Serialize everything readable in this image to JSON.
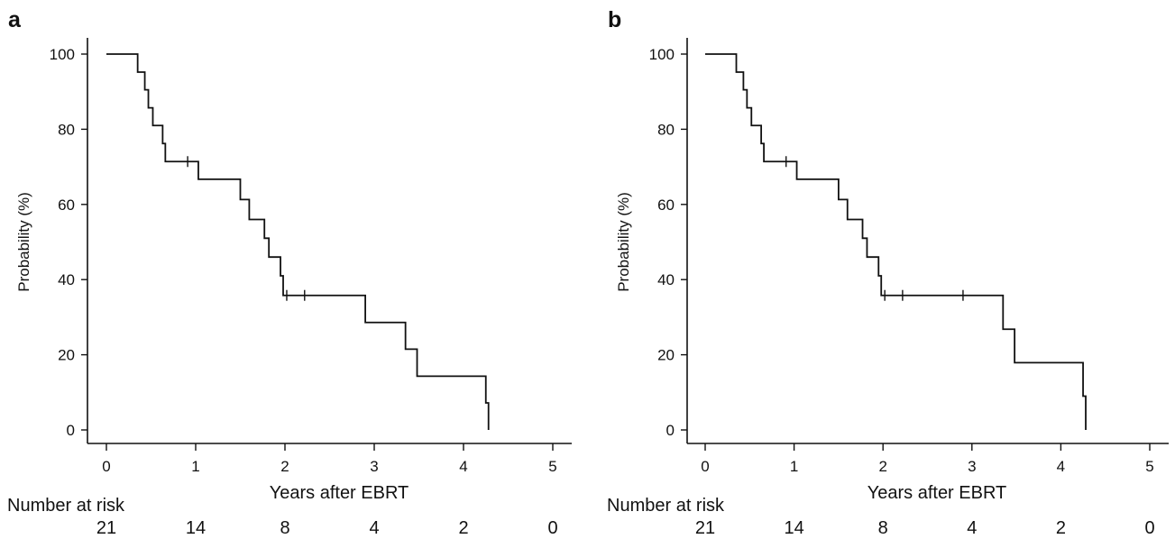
{
  "chart_data": [
    {
      "panel_label": "a",
      "type": "line",
      "subtype": "kaplan-meier",
      "xlabel": "Years after EBRT",
      "ylabel": "Probability (%)",
      "xlim": [
        0,
        5
      ],
      "ylim": [
        0,
        100
      ],
      "x_ticks": [
        0,
        1,
        2,
        3,
        4,
        5
      ],
      "y_ticks": [
        0,
        20,
        40,
        60,
        80,
        100
      ],
      "grid": false,
      "series": [
        {
          "x": [
            0,
            0.35,
            0.43,
            0.47,
            0.52,
            0.63,
            0.66,
            1.03,
            1.5,
            1.6,
            1.77,
            1.82,
            1.95,
            1.98,
            2.9,
            3.35,
            3.48,
            4.25,
            4.28
          ],
          "y": [
            100,
            95.2,
            90.5,
            85.7,
            81.0,
            76.2,
            71.4,
            66.7,
            61.3,
            56.0,
            51.0,
            46.0,
            41.0,
            35.8,
            28.6,
            21.5,
            14.3,
            7.2,
            0
          ],
          "censored": [
            [
              0.91,
              71.4
            ],
            [
              2.02,
              35.8
            ],
            [
              2.22,
              35.8
            ]
          ]
        }
      ],
      "risk_table": {
        "label": "Number at risk",
        "values": [
          "21",
          "14",
          "8",
          "4",
          "2",
          "0"
        ]
      }
    },
    {
      "panel_label": "b",
      "type": "line",
      "subtype": "kaplan-meier",
      "xlabel": "Years after EBRT",
      "ylabel": "Probability (%)",
      "xlim": [
        0,
        5
      ],
      "ylim": [
        0,
        100
      ],
      "x_ticks": [
        0,
        1,
        2,
        3,
        4,
        5
      ],
      "y_ticks": [
        0,
        20,
        40,
        60,
        80,
        100
      ],
      "grid": false,
      "series": [
        {
          "x": [
            0,
            0.35,
            0.43,
            0.47,
            0.52,
            0.63,
            0.66,
            1.03,
            1.5,
            1.6,
            1.77,
            1.82,
            1.95,
            1.98,
            3.35,
            3.48,
            4.25,
            4.28
          ],
          "y": [
            100,
            95.2,
            90.5,
            85.7,
            81.0,
            76.2,
            71.4,
            66.7,
            61.3,
            56.0,
            51.0,
            46.0,
            41.0,
            35.8,
            26.8,
            17.9,
            9.0,
            0
          ],
          "censored": [
            [
              0.91,
              71.4
            ],
            [
              2.02,
              35.8
            ],
            [
              2.22,
              35.8
            ],
            [
              2.9,
              35.8
            ]
          ]
        }
      ],
      "risk_table": {
        "label": "Number at risk",
        "values": [
          "21",
          "14",
          "8",
          "4",
          "2",
          "0"
        ]
      }
    }
  ]
}
